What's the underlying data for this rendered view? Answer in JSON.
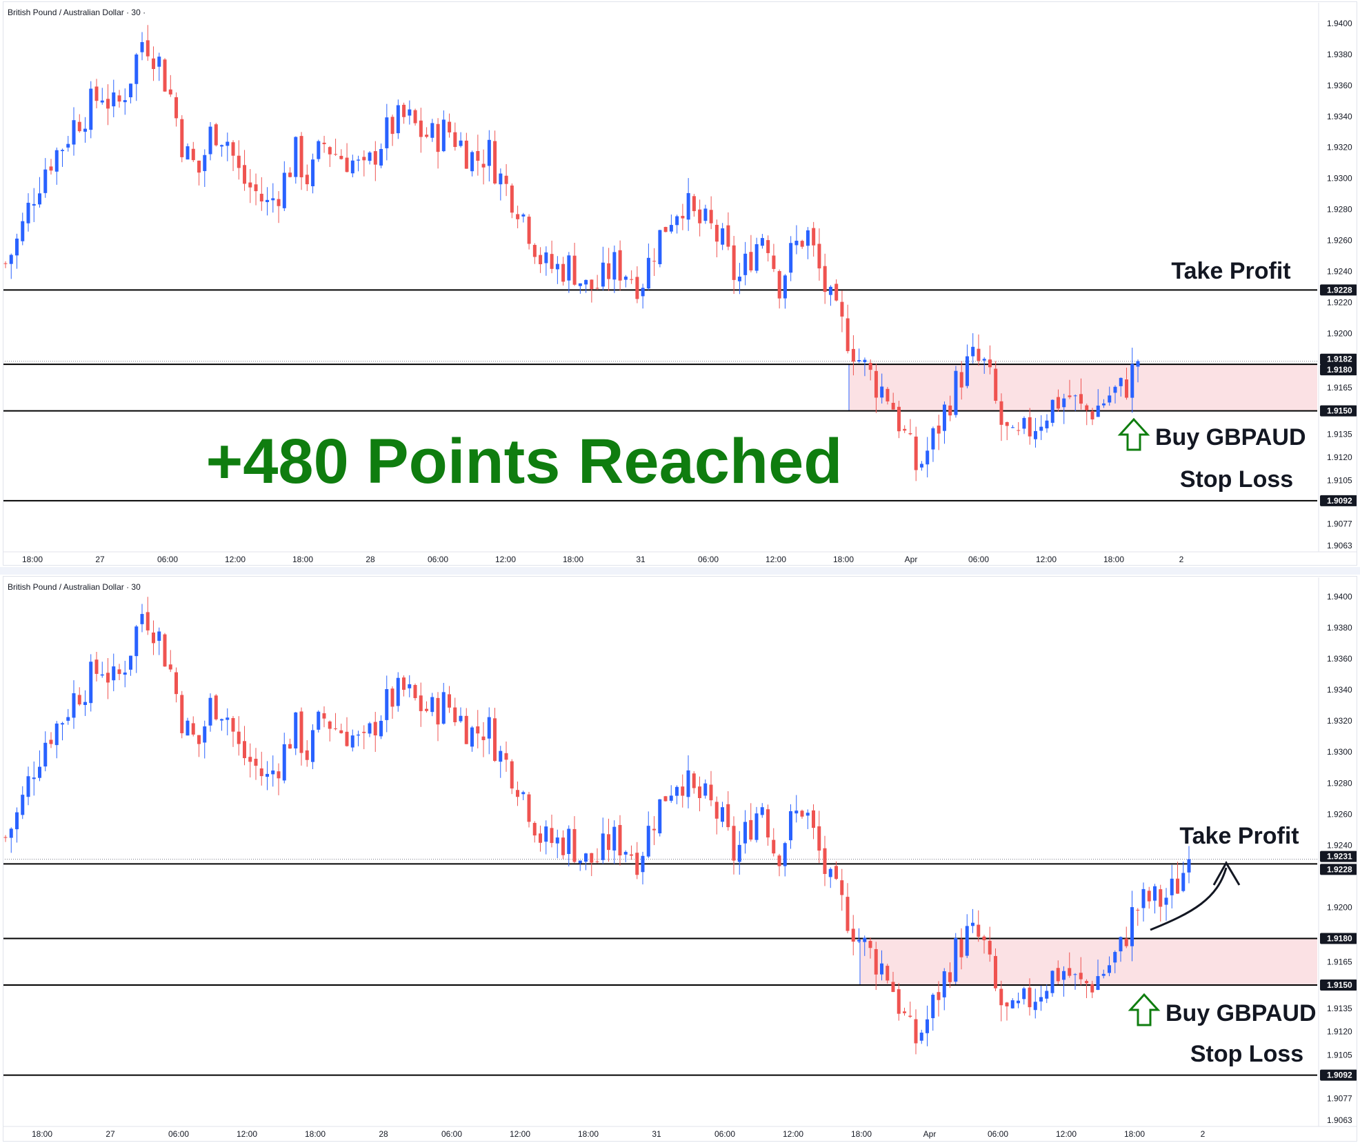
{
  "panels": [
    {
      "symbol": "British Pound / Australian Dollar · 30 ·",
      "y_ticks": [
        "1.9400",
        "1.9380",
        "1.9360",
        "1.9340",
        "1.9320",
        "1.9300",
        "1.9280",
        "1.9260",
        "1.9240",
        "1.9220",
        "1.9200",
        "1.9165",
        "1.9135",
        "1.9120",
        "1.9105",
        "1.9077",
        "1.9063"
      ],
      "x_ticks": [
        "18:00",
        "27",
        "06:00",
        "12:00",
        "18:00",
        "28",
        "06:00",
        "12:00",
        "18:00",
        "31",
        "06:00",
        "12:00",
        "18:00",
        "Apr",
        "06:00",
        "12:00",
        "18:00",
        "2"
      ],
      "badges": [
        "1.9228",
        "1.9182",
        "1.9180",
        "1.9150",
        "1.9092"
      ],
      "annotations": {
        "take_profit": "Take Profit",
        "buy": "Buy GBPAUD",
        "stop_loss": "Stop Loss",
        "headline": "+480 Points Reached"
      }
    },
    {
      "symbol": "British Pound / Australian Dollar · 30",
      "y_ticks": [
        "1.9400",
        "1.9380",
        "1.9360",
        "1.9340",
        "1.9320",
        "1.9300",
        "1.9280",
        "1.9260",
        "1.9240",
        "1.9200",
        "1.9165",
        "1.9135",
        "1.9120",
        "1.9105",
        "1.9077",
        "1.9063"
      ],
      "x_ticks": [
        "18:00",
        "27",
        "06:00",
        "12:00",
        "18:00",
        "28",
        "06:00",
        "12:00",
        "18:00",
        "31",
        "06:00",
        "12:00",
        "18:00",
        "Apr",
        "06:00",
        "12:00",
        "18:00",
        "2"
      ],
      "badges": [
        "1.9231",
        "1.9228",
        "1.9180",
        "1.9150",
        "1.9092"
      ],
      "annotations": {
        "take_profit": "Take Profit",
        "buy": "Buy GBPAUD",
        "stop_loss": "Stop Loss"
      }
    }
  ],
  "chart_data": [
    {
      "type": "candlestick",
      "instrument": "British Pound / Australian Dollar",
      "timeframe": "30",
      "levels": {
        "take_profit": 1.9228,
        "entry_zone_top": 1.918,
        "entry_zone_bottom": 1.915,
        "stop_loss": 1.9092,
        "last_price": 1.9182
      },
      "close_path": [
        1.9245,
        1.9262,
        1.929,
        1.931,
        1.932,
        1.9336,
        1.9345,
        1.9356,
        1.9343,
        1.9365,
        1.9392,
        1.9378,
        1.9352,
        1.9316,
        1.9304,
        1.9333,
        1.9327,
        1.93,
        1.9292,
        1.9282,
        1.9296,
        1.9316,
        1.9298,
        1.9323,
        1.9316,
        1.9312,
        1.9302,
        1.9322,
        1.9334,
        1.9339,
        1.933,
        1.9326,
        1.9332,
        1.9322,
        1.9312,
        1.9317,
        1.9297,
        1.9286,
        1.9266,
        1.9243,
        1.9242,
        1.9244,
        1.9229,
        1.9231,
        1.9244,
        1.924,
        1.9232,
        1.9256,
        1.9274,
        1.9286,
        1.9272,
        1.9268,
        1.9256,
        1.9232,
        1.9252,
        1.9268,
        1.9232,
        1.9253,
        1.9266,
        1.9238,
        1.9212,
        1.9198,
        1.918,
        1.9168,
        1.916,
        1.9136,
        1.9112,
        1.9128,
        1.915,
        1.9171,
        1.9183,
        1.9178,
        1.9143,
        1.9127,
        1.9137,
        1.9146,
        1.9156,
        1.916,
        1.9149,
        1.9152,
        1.9161,
        1.9164,
        1.9182
      ],
      "bull_color": "#2962ff",
      "bear_color": "#ef5350",
      "zone_color": "#fbe1e4"
    },
    {
      "type": "candlestick",
      "instrument": "British Pound / Australian Dollar",
      "timeframe": "30",
      "levels": {
        "take_profit": 1.9228,
        "entry_zone_top": 1.918,
        "entry_zone_bottom": 1.915,
        "stop_loss": 1.9092,
        "last_price": 1.9231
      },
      "close_path": [
        1.9245,
        1.9262,
        1.929,
        1.931,
        1.932,
        1.9336,
        1.9345,
        1.9356,
        1.9343,
        1.9365,
        1.9392,
        1.9378,
        1.9352,
        1.9316,
        1.9304,
        1.9333,
        1.9327,
        1.93,
        1.9292,
        1.9282,
        1.9296,
        1.9316,
        1.9298,
        1.9323,
        1.9316,
        1.9312,
        1.9302,
        1.9322,
        1.9334,
        1.9339,
        1.933,
        1.9326,
        1.9332,
        1.9322,
        1.9312,
        1.9317,
        1.9297,
        1.9286,
        1.9266,
        1.9243,
        1.9242,
        1.9244,
        1.9229,
        1.9231,
        1.9244,
        1.924,
        1.9232,
        1.9256,
        1.9274,
        1.9286,
        1.9272,
        1.9268,
        1.9256,
        1.9232,
        1.9252,
        1.9268,
        1.9232,
        1.9253,
        1.9266,
        1.9238,
        1.9212,
        1.9198,
        1.918,
        1.9168,
        1.916,
        1.9136,
        1.9112,
        1.9128,
        1.915,
        1.9171,
        1.9183,
        1.9178,
        1.9143,
        1.9127,
        1.9137,
        1.9146,
        1.9156,
        1.916,
        1.9149,
        1.9152,
        1.9161,
        1.9172,
        1.9198,
        1.9205,
        1.9204,
        1.9212,
        1.9231
      ],
      "bull_color": "#2962ff",
      "bear_color": "#ef5350",
      "zone_color": "#fbe1e4"
    }
  ]
}
